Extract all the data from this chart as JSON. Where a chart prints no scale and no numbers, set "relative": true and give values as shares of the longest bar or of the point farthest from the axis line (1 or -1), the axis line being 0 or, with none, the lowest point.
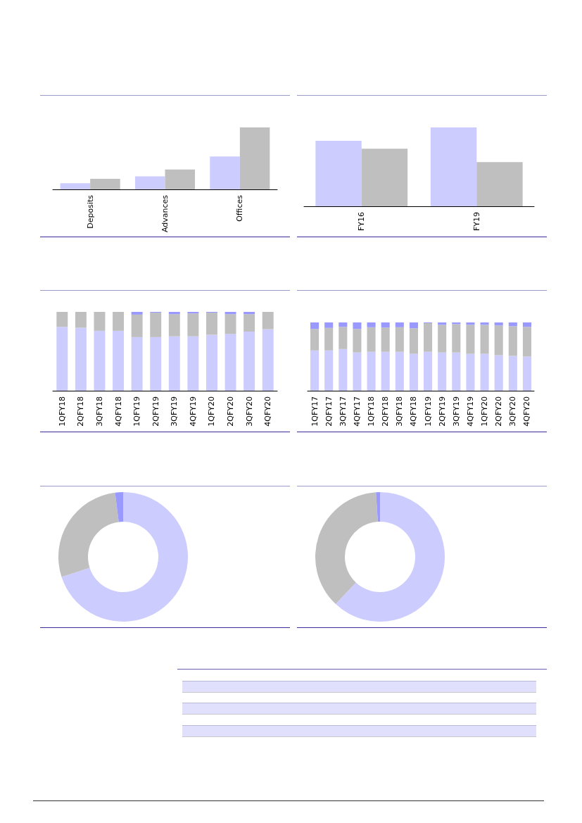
{
  "chart_data": [
    {
      "type": "bar",
      "relative": true,
      "categories": [
        "Deposits",
        "Advances",
        "Offices"
      ],
      "series": [
        {
          "color": "#ccccff",
          "values": [
            0.1,
            0.21,
            0.53
          ]
        },
        {
          "color": "#bfbfbf",
          "values": [
            0.17,
            0.32,
            1
          ]
        }
      ]
    },
    {
      "type": "bar",
      "relative": true,
      "categories": [
        "FY16",
        "FY19"
      ],
      "series": [
        {
          "color": "#ccccff",
          "values": [
            0.83,
            1
          ]
        },
        {
          "color": "#bfbfbf",
          "values": [
            0.73,
            0.56
          ]
        }
      ]
    },
    {
      "type": "bar",
      "relative": true,
      "stacked": true,
      "categories": [
        "1QFY18",
        "2QFY18",
        "3QFY18",
        "4QFY18",
        "1QFY19",
        "2QFY19",
        "3QFY19",
        "4QFY19",
        "1QFY20",
        "2QFY20",
        "3QFY20",
        "4QFY20"
      ],
      "series": [
        {
          "color": "#ccccff",
          "values": [
            0.81,
            0.8,
            0.76,
            0.76,
            0.68,
            0.68,
            0.69,
            0.69,
            0.71,
            0.72,
            0.75,
            0.78
          ]
        },
        {
          "color": "#bfbfbf",
          "values": [
            0.19,
            0.2,
            0.24,
            0.24,
            0.285,
            0.31,
            0.28,
            0.29,
            0.28,
            0.25,
            0.22,
            0.22
          ]
        },
        {
          "color": "#9999ff",
          "values": [
            0,
            0,
            0,
            0,
            0.035,
            0.01,
            0.03,
            0.02,
            0.01,
            0.03,
            0.03,
            0
          ]
        }
      ]
    },
    {
      "type": "bar",
      "relative": true,
      "stacked": true,
      "categories": [
        "1QFY17",
        "2QFY17",
        "3QFY17",
        "4QFY17",
        "1QFY18",
        "2QFY18",
        "3QFY18",
        "4QFY18",
        "1QFY19",
        "2QFY19",
        "3QFY19",
        "4QFY19",
        "1QFY20",
        "2QFY20",
        "3QFY20",
        "4QFY20"
      ],
      "series": [
        {
          "color": "#ccccff",
          "values": [
            0.59,
            0.59,
            0.61,
            0.56,
            0.57,
            0.57,
            0.57,
            0.54,
            0.57,
            0.56,
            0.56,
            0.54,
            0.54,
            0.52,
            0.51,
            0.5
          ]
        },
        {
          "color": "#bfbfbf",
          "values": [
            0.315,
            0.33,
            0.325,
            0.345,
            0.36,
            0.355,
            0.36,
            0.375,
            0.42,
            0.405,
            0.415,
            0.425,
            0.425,
            0.435,
            0.435,
            0.435
          ]
        },
        {
          "color": "#9999ff",
          "values": [
            0.095,
            0.08,
            0.065,
            0.095,
            0.07,
            0.075,
            0.07,
            0.085,
            0.01,
            0.035,
            0.025,
            0.035,
            0.035,
            0.045,
            0.055,
            0.065
          ]
        }
      ]
    },
    {
      "type": "donut",
      "categories": [
        null,
        null,
        null
      ],
      "values": [
        70,
        28,
        2
      ],
      "colors": [
        "#ccccff",
        "#bfbfbf",
        "#9999ff"
      ]
    },
    {
      "type": "donut",
      "categories": [
        null,
        null,
        null
      ],
      "values": [
        62,
        37,
        1
      ],
      "colors": [
        "#ccccff",
        "#bfbfbf",
        "#9999ff"
      ]
    }
  ]
}
